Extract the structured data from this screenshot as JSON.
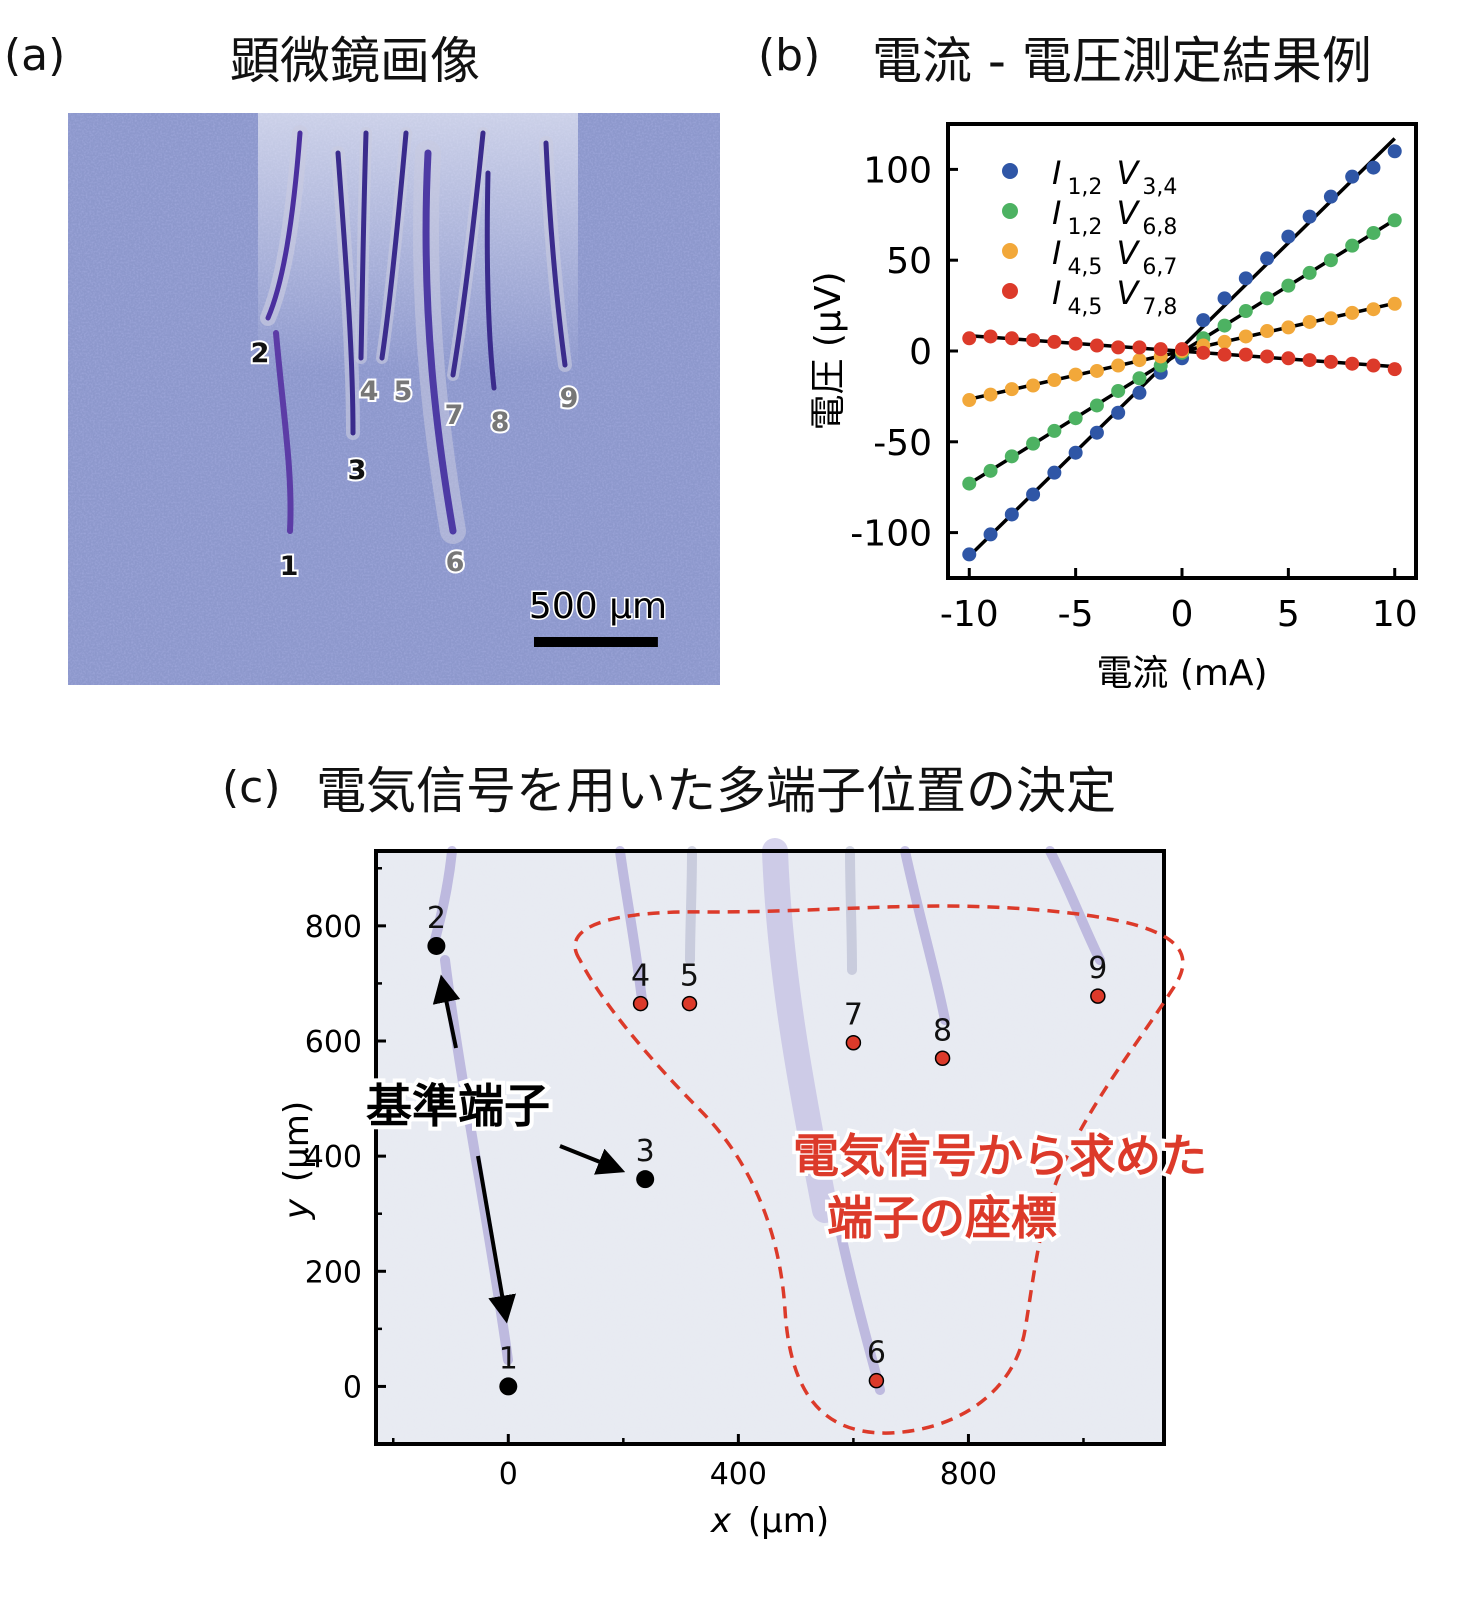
{
  "panel_a": {
    "label": "(a)",
    "title": "顕微鏡画像",
    "scale_bar_label": "500 μm",
    "scale_bar_fraction": 0.19,
    "terminal_labels": [
      "1",
      "2",
      "3",
      "4",
      "5",
      "6",
      "7",
      "8",
      "9"
    ]
  },
  "panel_b": {
    "label": "(b)",
    "title": "電流 - 電圧測定結果例"
  },
  "panel_c": {
    "label": "(c)",
    "title": "電気信号を用いた多端子位置の決定",
    "reference_label": "基準端子",
    "computed_label_line1": "電気信号から求めた",
    "computed_label_line2": "端子の座標"
  },
  "colors": {
    "blue": "#2f56a6",
    "green": "#4db262",
    "orange": "#f2a83a",
    "red": "#dc3a2a",
    "fit_line": "#000000",
    "micrograph": "#8d98cc",
    "micrograph_c": "#e8ebf2"
  },
  "chart_data": [
    {
      "type": "scatter",
      "panel": "(b)",
      "xlabel": "電流 (mA)",
      "ylabel": "電圧 (μV)",
      "xlim": [
        -11,
        11
      ],
      "ylim": [
        -125,
        125
      ],
      "xticks": [
        -10,
        -5,
        0,
        5,
        10
      ],
      "xtick_labels": [
        "-10",
        "-5",
        "0",
        "5",
        "10"
      ],
      "yticks": [
        -100,
        -50,
        0,
        50,
        100
      ],
      "ytick_labels": [
        "-100",
        "-50",
        "0",
        "50",
        "100"
      ],
      "grid": false,
      "legend_position": "top-left",
      "fit_lines": true,
      "x": [
        -10,
        -9,
        -8,
        -7,
        -6,
        -5,
        -4,
        -3,
        -2,
        -1,
        0,
        1,
        2,
        3,
        4,
        5,
        6,
        7,
        8,
        9,
        10
      ],
      "series": [
        {
          "name": "I",
          "subscript": "1,2",
          "name2": "V",
          "subscript2": "3,4",
          "color_key": "blue",
          "values": [
            -112,
            -101,
            -90,
            -79,
            -67,
            -56,
            -45,
            -34,
            -23,
            -12,
            -4,
            17,
            29,
            40,
            51,
            63,
            74,
            85,
            96,
            101,
            110
          ]
        },
        {
          "name": "I",
          "subscript": "1,2",
          "name2": "V",
          "subscript2": "6,8",
          "color_key": "green",
          "values": [
            -73,
            -66,
            -58,
            -51,
            -44,
            -37,
            -30,
            -22,
            -15,
            -8,
            -1,
            7,
            14,
            22,
            29,
            36,
            43,
            50,
            58,
            65,
            72
          ]
        },
        {
          "name": "I",
          "subscript": "4,5",
          "name2": "V",
          "subscript2": "6,7",
          "color_key": "orange",
          "values": [
            -27,
            -24,
            -21,
            -19,
            -16,
            -13,
            -11,
            -8,
            -5,
            -3,
            0,
            3,
            5,
            8,
            11,
            13,
            16,
            18,
            21,
            23,
            26
          ]
        },
        {
          "name": "I",
          "subscript": "4,5",
          "name2": "V",
          "subscript2": "7,8",
          "color_key": "red",
          "values": [
            7,
            8,
            7,
            6,
            5,
            4,
            3,
            2,
            2,
            1,
            1,
            -1,
            -2,
            -2,
            -3,
            -4,
            -5,
            -6,
            -7,
            -8,
            -10
          ]
        }
      ]
    },
    {
      "type": "scatter",
      "panel": "(c)",
      "xlabel_var": "x",
      "xlabel_unit": "(μm)",
      "ylabel_var": "y",
      "ylabel_unit": "(μm)",
      "xlim": [
        -230,
        1140
      ],
      "ylim": [
        -100,
        930
      ],
      "xticks": [
        0,
        400,
        800
      ],
      "xtick_labels": [
        "0",
        "400",
        "800"
      ],
      "yticks": [
        0,
        200,
        400,
        600,
        800
      ],
      "ytick_labels": [
        "0",
        "200",
        "400",
        "600",
        "800"
      ],
      "grid": false,
      "points": [
        {
          "label": "1",
          "x": 0,
          "y": 0,
          "group": "reference"
        },
        {
          "label": "2",
          "x": -125,
          "y": 765,
          "group": "reference"
        },
        {
          "label": "3",
          "x": 238,
          "y": 360,
          "group": "reference"
        },
        {
          "label": "4",
          "x": 230,
          "y": 665,
          "group": "computed"
        },
        {
          "label": "5",
          "x": 315,
          "y": 665,
          "group": "computed"
        },
        {
          "label": "6",
          "x": 640,
          "y": 10,
          "group": "computed"
        },
        {
          "label": "7",
          "x": 600,
          "y": 597,
          "group": "computed"
        },
        {
          "label": "8",
          "x": 755,
          "y": 570,
          "group": "computed"
        },
        {
          "label": "9",
          "x": 1025,
          "y": 678,
          "group": "computed"
        }
      ]
    }
  ]
}
